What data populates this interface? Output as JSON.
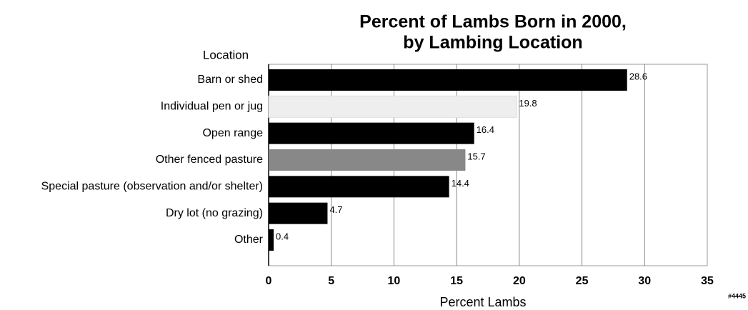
{
  "chart_data": {
    "type": "bar",
    "orientation": "horizontal",
    "title": [
      "Percent of Lambs Born in 2000,",
      "by Lambing Location"
    ],
    "y_label": "Location",
    "x_label": "Percent Lambs",
    "annotation": "#4445",
    "categories": [
      "Barn or shed",
      "Individual pen or jug",
      "Open range",
      "Other fenced pasture",
      "Special pasture (observation and/or shelter)",
      "Dry lot (no grazing)",
      "Other"
    ],
    "values": [
      28.6,
      19.8,
      16.4,
      15.7,
      14.4,
      4.7,
      0.4
    ],
    "colors": [
      "#000000",
      "#eeeeee",
      "#000000",
      "#888888",
      "#000000",
      "#000000",
      "#000000"
    ],
    "xlim": [
      0,
      35
    ],
    "xticks": [
      0,
      5,
      10,
      15,
      20,
      25,
      30,
      35
    ],
    "grid": true
  }
}
